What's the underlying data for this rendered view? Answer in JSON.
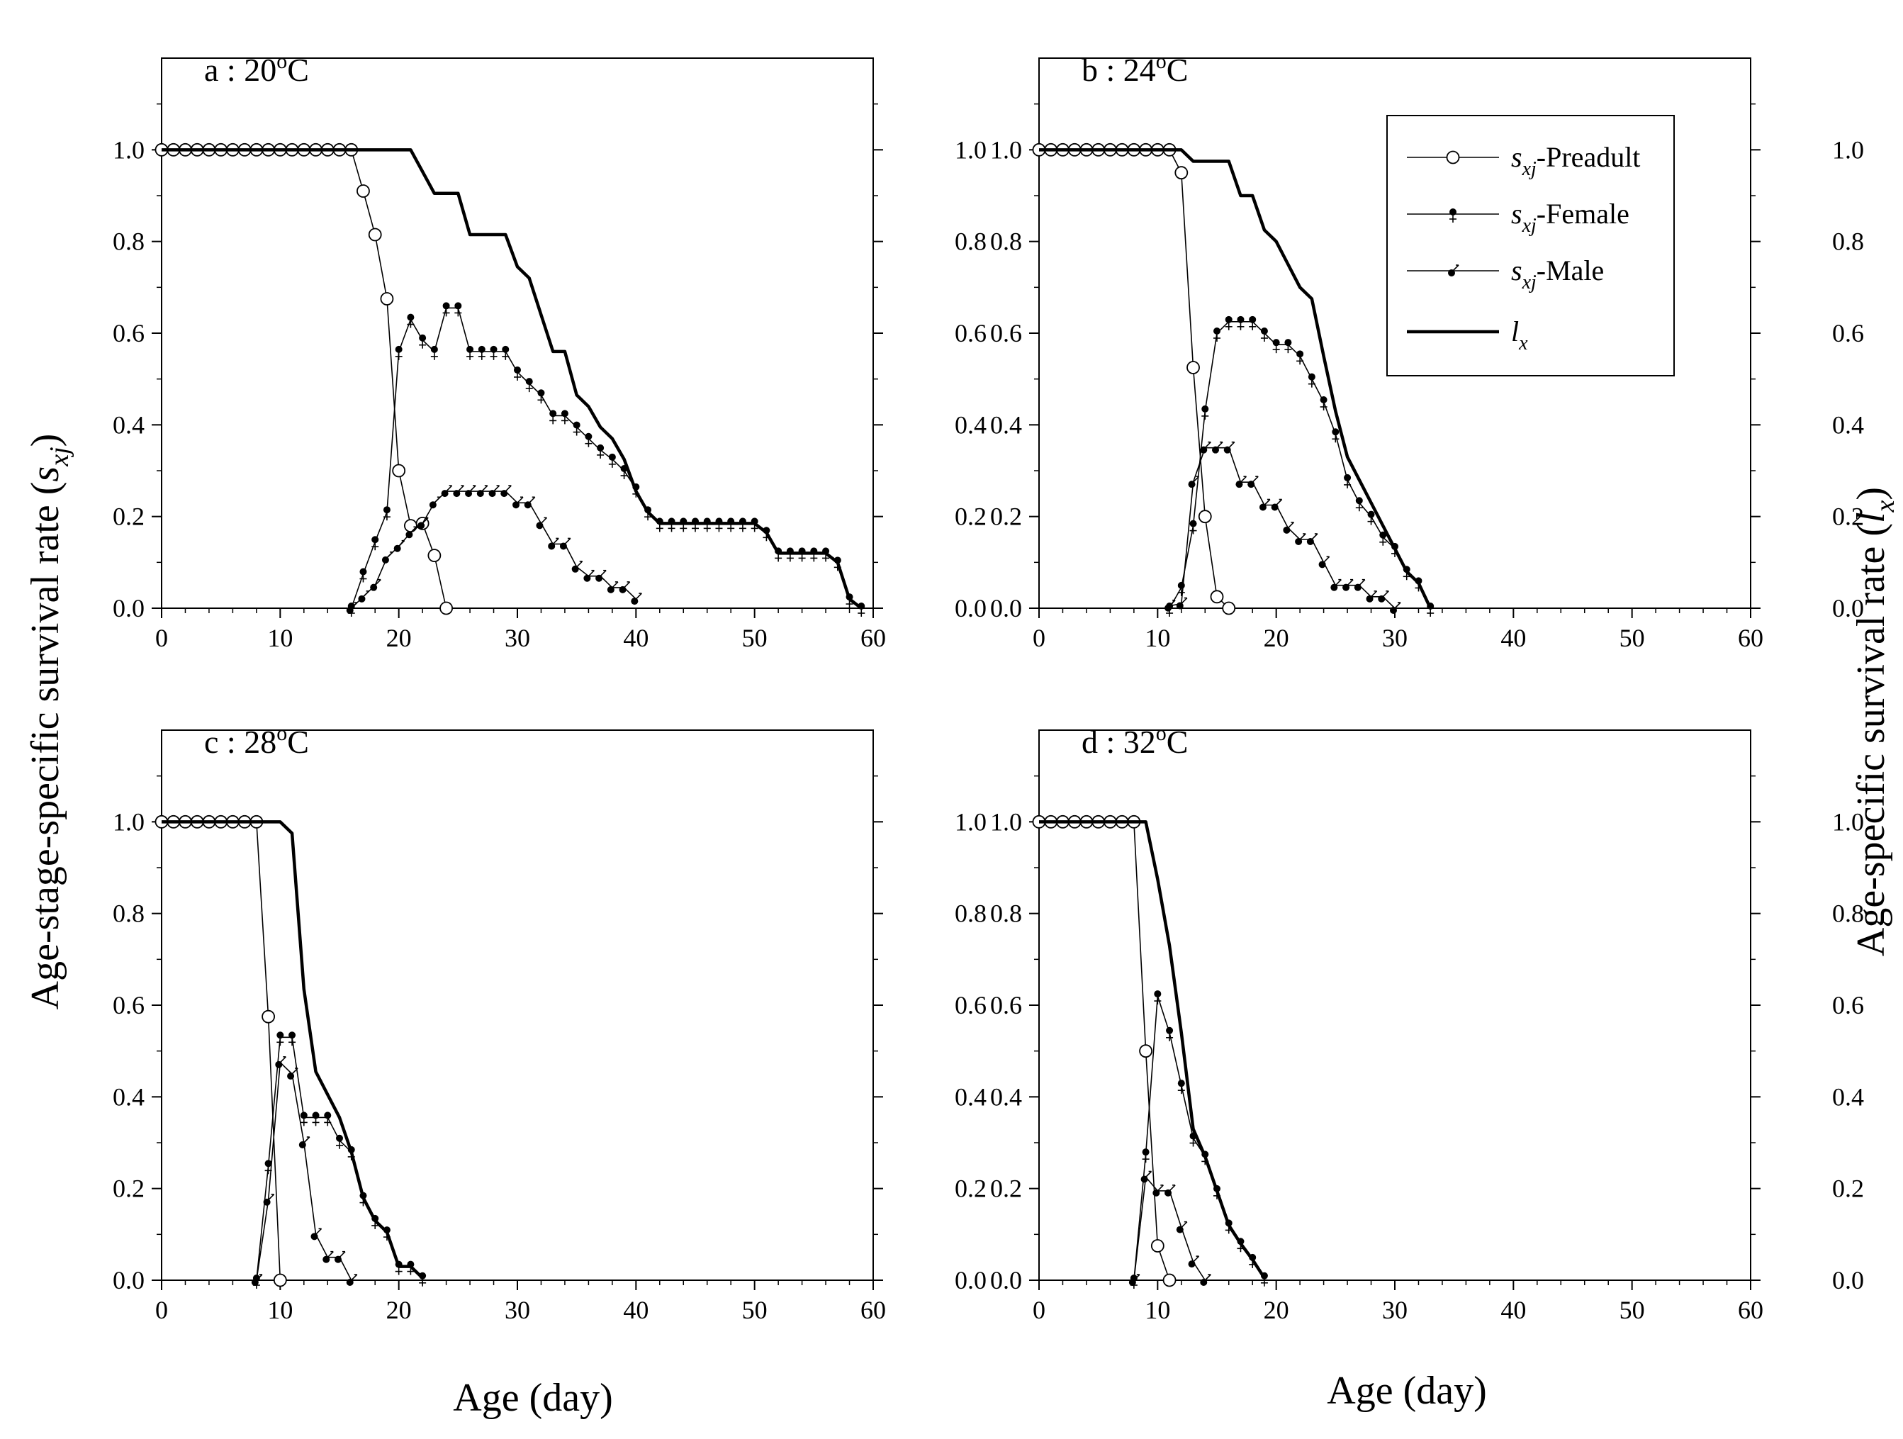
{
  "figure": {
    "ylabel_left": "Age-stage-specific survival rate (",
    "ylabel_left_sym": "s",
    "ylabel_left_sub": "xj",
    "ylabel_left_end": ")",
    "ylabel_right": "Age-specific survival rate (",
    "ylabel_right_sym": "l",
    "ylabel_right_sub": "x",
    "ylabel_right_end": ")",
    "xlabel": "Age (day)"
  },
  "legend": {
    "items": [
      {
        "key": "preadult",
        "sym": "s",
        "sub": "xj",
        "suffix": "-Preadult"
      },
      {
        "key": "female",
        "sym": "s",
        "sub": "xj",
        "suffix": "-Female"
      },
      {
        "key": "male",
        "sym": "s",
        "sub": "xj",
        "suffix": "-Male"
      },
      {
        "key": "lx",
        "sym": "l",
        "sub": "x",
        "suffix": ""
      }
    ]
  },
  "chart_data": [
    {
      "type": "line",
      "title_prefix": "a : 20",
      "title_degree": "o",
      "title_unit": "C",
      "xlim": [
        0,
        60
      ],
      "ylim": [
        0,
        1.2
      ],
      "xticks": [
        "0",
        "10",
        "20",
        "30",
        "40",
        "50",
        "60"
      ],
      "yticks": [
        "0.0",
        "0.2",
        "0.4",
        "0.6",
        "0.8",
        "1.0"
      ],
      "series": [
        {
          "name": "sxj-Preadult",
          "x": [
            0,
            1,
            2,
            3,
            4,
            5,
            6,
            7,
            8,
            9,
            10,
            11,
            12,
            13,
            14,
            15,
            16,
            17,
            18,
            19,
            20,
            21,
            22,
            23,
            24
          ],
          "values": [
            1,
            1,
            1,
            1,
            1,
            1,
            1,
            1,
            1,
            1,
            1,
            1,
            1,
            1,
            1,
            1,
            1,
            0.91,
            0.815,
            0.675,
            0.3,
            0.18,
            0.185,
            0.115,
            0
          ]
        },
        {
          "name": "sxj-Female",
          "x": [
            16,
            17,
            18,
            19,
            20,
            21,
            22,
            23,
            24,
            25,
            26,
            27,
            28,
            29,
            30,
            31,
            32,
            33,
            34,
            35,
            36,
            37,
            38,
            39,
            40,
            41,
            42,
            43,
            44,
            45,
            46,
            47,
            48,
            49,
            50,
            51,
            52,
            53,
            54,
            55,
            56,
            57,
            58,
            59
          ],
          "values": [
            0,
            0.075,
            0.145,
            0.21,
            0.56,
            0.63,
            0.585,
            0.56,
            0.655,
            0.655,
            0.56,
            0.56,
            0.56,
            0.56,
            0.515,
            0.49,
            0.465,
            0.42,
            0.42,
            0.395,
            0.37,
            0.345,
            0.325,
            0.3,
            0.26,
            0.21,
            0.185,
            0.185,
            0.185,
            0.185,
            0.185,
            0.185,
            0.185,
            0.185,
            0.185,
            0.165,
            0.12,
            0.12,
            0.12,
            0.12,
            0.12,
            0.1,
            0.02,
            0
          ]
        },
        {
          "name": "sxj-Male",
          "x": [
            16,
            17,
            18,
            19,
            20,
            21,
            22,
            23,
            24,
            25,
            26,
            27,
            28,
            29,
            30,
            31,
            32,
            33,
            34,
            35,
            36,
            37,
            38,
            39,
            40
          ],
          "values": [
            0,
            0.025,
            0.05,
            0.11,
            0.135,
            0.165,
            0.185,
            0.23,
            0.255,
            0.255,
            0.255,
            0.255,
            0.255,
            0.255,
            0.23,
            0.23,
            0.185,
            0.14,
            0.14,
            0.09,
            0.07,
            0.07,
            0.045,
            0.045,
            0.02
          ]
        },
        {
          "name": "lx",
          "x": [
            0,
            16,
            21,
            23,
            24,
            25,
            26,
            28,
            29,
            30,
            31,
            32,
            33,
            34,
            35,
            36,
            37,
            38,
            39,
            40,
            41,
            42,
            43,
            44,
            45,
            46,
            47,
            48,
            49,
            50,
            51,
            52,
            53,
            54,
            55,
            56,
            57,
            58,
            59
          ],
          "values": [
            1,
            1,
            1,
            0.905,
            0.905,
            0.905,
            0.815,
            0.815,
            0.815,
            0.745,
            0.72,
            0.64,
            0.56,
            0.56,
            0.465,
            0.44,
            0.395,
            0.37,
            0.325,
            0.255,
            0.21,
            0.185,
            0.185,
            0.185,
            0.185,
            0.185,
            0.185,
            0.185,
            0.185,
            0.185,
            0.165,
            0.12,
            0.12,
            0.12,
            0.12,
            0.12,
            0.1,
            0.02,
            0
          ]
        }
      ]
    },
    {
      "type": "line",
      "title_prefix": "b : 24",
      "title_degree": "o",
      "title_unit": "C",
      "xlim": [
        0,
        60
      ],
      "ylim": [
        0,
        1.2
      ],
      "xticks": [
        "0",
        "10",
        "20",
        "30",
        "40",
        "50",
        "60"
      ],
      "yticks": [
        "0.0",
        "0.2",
        "0.4",
        "0.6",
        "0.8",
        "1.0"
      ],
      "series": [
        {
          "name": "sxj-Preadult",
          "x": [
            0,
            1,
            2,
            3,
            4,
            5,
            6,
            7,
            8,
            9,
            10,
            11,
            12,
            13,
            14,
            15,
            16
          ],
          "values": [
            1,
            1,
            1,
            1,
            1,
            1,
            1,
            1,
            1,
            1,
            1,
            1,
            0.95,
            0.525,
            0.2,
            0.025,
            0
          ]
        },
        {
          "name": "sxj-Female",
          "x": [
            11,
            12,
            13,
            14,
            15,
            16,
            17,
            18,
            19,
            20,
            21,
            22,
            23,
            24,
            25,
            26,
            27,
            28,
            29,
            30,
            31,
            32,
            33
          ],
          "values": [
            0,
            0.045,
            0.18,
            0.43,
            0.6,
            0.625,
            0.625,
            0.625,
            0.6,
            0.575,
            0.575,
            0.55,
            0.5,
            0.45,
            0.38,
            0.28,
            0.23,
            0.2,
            0.155,
            0.13,
            0.08,
            0.055,
            0
          ]
        },
        {
          "name": "sxj-Male",
          "x": [
            11,
            12,
            13,
            14,
            15,
            16,
            17,
            18,
            19,
            20,
            21,
            22,
            23,
            24,
            25,
            26,
            27,
            28,
            29,
            30
          ],
          "values": [
            0.005,
            0.01,
            0.275,
            0.35,
            0.35,
            0.35,
            0.275,
            0.275,
            0.225,
            0.225,
            0.175,
            0.15,
            0.15,
            0.1,
            0.05,
            0.05,
            0.05,
            0.025,
            0.025,
            0
          ]
        },
        {
          "name": "lx",
          "x": [
            0,
            12,
            13,
            15,
            16,
            17,
            18,
            19,
            20,
            21,
            22,
            23,
            24,
            25,
            26,
            27,
            28,
            29,
            30,
            31,
            32,
            33
          ],
          "values": [
            1,
            1,
            0.975,
            0.975,
            0.975,
            0.9,
            0.9,
            0.825,
            0.8,
            0.75,
            0.7,
            0.675,
            0.55,
            0.43,
            0.33,
            0.28,
            0.23,
            0.18,
            0.13,
            0.08,
            0.055,
            0
          ]
        }
      ]
    },
    {
      "type": "line",
      "title_prefix": "c : 28",
      "title_degree": "o",
      "title_unit": "C",
      "xlim": [
        0,
        60
      ],
      "ylim": [
        0,
        1.2
      ],
      "xticks": [
        "0",
        "10",
        "20",
        "30",
        "40",
        "50",
        "60"
      ],
      "yticks": [
        "0.0",
        "0.2",
        "0.4",
        "0.6",
        "0.8",
        "1.0"
      ],
      "series": [
        {
          "name": "sxj-Preadult",
          "x": [
            0,
            1,
            2,
            3,
            4,
            5,
            6,
            7,
            8,
            9,
            10
          ],
          "values": [
            1,
            1,
            1,
            1,
            1,
            1,
            1,
            1,
            1,
            0.575,
            0
          ]
        },
        {
          "name": "sxj-Female",
          "x": [
            8,
            9,
            10,
            11,
            12,
            13,
            14,
            15,
            16,
            17,
            18,
            19,
            20,
            21,
            22
          ],
          "values": [
            0,
            0.25,
            0.53,
            0.53,
            0.355,
            0.355,
            0.355,
            0.305,
            0.28,
            0.18,
            0.13,
            0.105,
            0.03,
            0.03,
            0.005
          ]
        },
        {
          "name": "sxj-Male",
          "x": [
            8,
            9,
            10,
            11,
            12,
            13,
            14,
            15,
            16
          ],
          "values": [
            0,
            0.175,
            0.475,
            0.45,
            0.3,
            0.1,
            0.05,
            0.05,
            0
          ]
        },
        {
          "name": "lx",
          "x": [
            0,
            10,
            11,
            12,
            13,
            14,
            15,
            16,
            17,
            18,
            19,
            20,
            21,
            22
          ],
          "values": [
            1,
            1,
            0.975,
            0.635,
            0.455,
            0.405,
            0.355,
            0.28,
            0.18,
            0.13,
            0.105,
            0.03,
            0.03,
            0.005
          ]
        }
      ]
    },
    {
      "type": "line",
      "title_prefix": "d : 32",
      "title_degree": "o",
      "title_unit": "C",
      "xlim": [
        0,
        60
      ],
      "ylim": [
        0,
        1.2
      ],
      "xticks": [
        "0",
        "10",
        "20",
        "30",
        "40",
        "50",
        "60"
      ],
      "yticks": [
        "0.0",
        "0.2",
        "0.4",
        "0.6",
        "0.8",
        "1.0"
      ],
      "series": [
        {
          "name": "sxj-Preadult",
          "x": [
            0,
            1,
            2,
            3,
            4,
            5,
            6,
            7,
            8,
            9,
            10,
            11
          ],
          "values": [
            1,
            1,
            1,
            1,
            1,
            1,
            1,
            1,
            1,
            0.5,
            0.075,
            0
          ]
        },
        {
          "name": "sxj-Female",
          "x": [
            8,
            9,
            10,
            11,
            12,
            13,
            14,
            15,
            16,
            17,
            18,
            19
          ],
          "values": [
            0,
            0.275,
            0.62,
            0.54,
            0.425,
            0.31,
            0.27,
            0.195,
            0.12,
            0.08,
            0.045,
            0.005
          ]
        },
        {
          "name": "sxj-Male",
          "x": [
            8,
            9,
            10,
            11,
            12,
            13,
            14
          ],
          "values": [
            0,
            0.225,
            0.195,
            0.195,
            0.115,
            0.04,
            0
          ]
        },
        {
          "name": "lx",
          "x": [
            0,
            9,
            10,
            11,
            12,
            13,
            14,
            15,
            16,
            17,
            18,
            19
          ],
          "values": [
            1,
            1,
            0.875,
            0.73,
            0.54,
            0.33,
            0.27,
            0.195,
            0.12,
            0.08,
            0.045,
            0.005
          ]
        }
      ]
    }
  ]
}
